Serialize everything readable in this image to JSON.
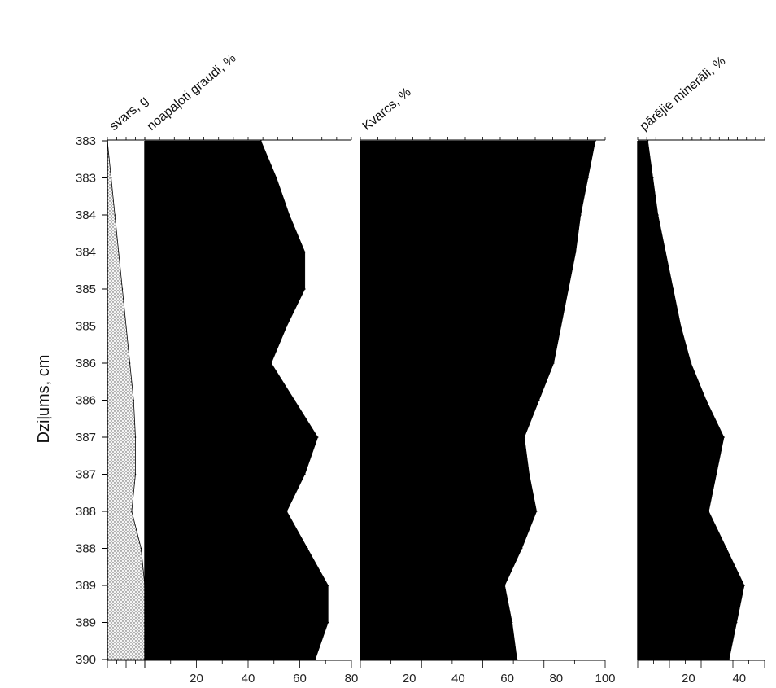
{
  "chart_data": {
    "type": "area",
    "ylabel": "Dziļums, cm",
    "y_tick_labels": [
      "383",
      "383",
      "384",
      "384",
      "385",
      "385",
      "386",
      "386",
      "387",
      "387",
      "388",
      "388",
      "389",
      "389",
      "390"
    ],
    "depth": [
      383,
      383.5,
      384,
      384.5,
      385,
      385.5,
      386,
      386.5,
      387,
      387.5,
      388,
      388.5,
      389,
      389.5,
      390
    ],
    "ylim": [
      383,
      390
    ],
    "panels": [
      {
        "title": "svars, g",
        "xlim": [
          0,
          10
        ],
        "xticks": [],
        "values": [
          0,
          1,
          2,
          3,
          4,
          5,
          6,
          7,
          7.5,
          7.5,
          6.5,
          9,
          10,
          10,
          10
        ],
        "fill": "stipple"
      },
      {
        "title": "noapaļoti graudi, %",
        "xlim": [
          0,
          80
        ],
        "xticks": [
          "20",
          "40",
          "60",
          "80"
        ],
        "values": [
          45,
          51,
          56,
          62,
          62,
          55,
          49,
          58,
          67,
          62,
          55,
          63,
          71,
          71,
          66
        ],
        "fill": "#000000"
      },
      {
        "title": "Kvarcs, %",
        "xlim": [
          0,
          100
        ],
        "xticks": [
          "20",
          "40",
          "60",
          "80",
          "100"
        ],
        "values": [
          96,
          93,
          90,
          88,
          85,
          82,
          79,
          73,
          67,
          69,
          72,
          66,
          59,
          62,
          64
        ],
        "fill": "#000000"
      },
      {
        "title": "pārējie minerāli, %",
        "xlim": [
          0,
          50
        ],
        "xticks": [
          "20",
          "40"
        ],
        "values": [
          4,
          6,
          8,
          11,
          14,
          17,
          21,
          27,
          34,
          31,
          28,
          35,
          42,
          39,
          36
        ],
        "fill": "#000000"
      }
    ]
  }
}
